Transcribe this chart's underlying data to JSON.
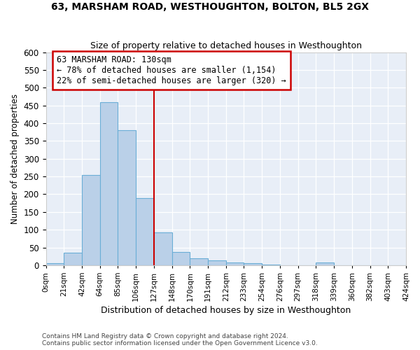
{
  "title": "63, MARSHAM ROAD, WESTHOUGHTON, BOLTON, BL5 2GX",
  "subtitle": "Size of property relative to detached houses in Westhoughton",
  "xlabel": "Distribution of detached houses by size in Westhoughton",
  "ylabel": "Number of detached properties",
  "footer_line1": "Contains HM Land Registry data © Crown copyright and database right 2024.",
  "footer_line2": "Contains public sector information licensed under the Open Government Licence v3.0.",
  "annotation_title": "63 MARSHAM ROAD: 130sqm",
  "annotation_line1": "← 78% of detached houses are smaller (1,154)",
  "annotation_line2": "22% of semi-detached houses are larger (320) →",
  "subject_bin_index": 5,
  "bar_color": "#bad0e8",
  "bar_edge_color": "#6baed6",
  "vline_color": "#cc0000",
  "annotation_box_color": "#cc0000",
  "background_color": "#e8eef7",
  "tick_labels": [
    "0sqm",
    "21sqm",
    "42sqm",
    "64sqm",
    "85sqm",
    "106sqm",
    "127sqm",
    "148sqm",
    "170sqm",
    "191sqm",
    "212sqm",
    "233sqm",
    "254sqm",
    "276sqm",
    "297sqm",
    "318sqm",
    "339sqm",
    "360sqm",
    "382sqm",
    "403sqm",
    "424sqm"
  ],
  "bar_heights": [
    5,
    35,
    255,
    460,
    380,
    190,
    92,
    38,
    20,
    13,
    8,
    5,
    1,
    0,
    0,
    7,
    0,
    0,
    0,
    0
  ],
  "ylim": [
    0,
    600
  ],
  "yticks": [
    0,
    50,
    100,
    150,
    200,
    250,
    300,
    350,
    400,
    450,
    500,
    550,
    600
  ]
}
